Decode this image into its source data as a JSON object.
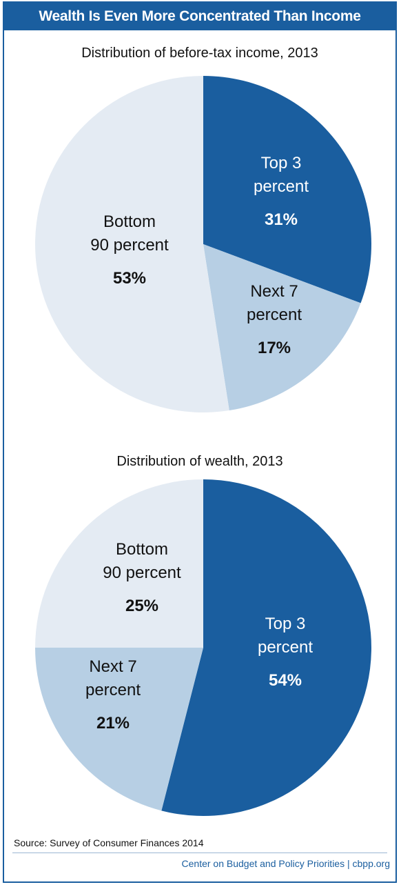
{
  "header": {
    "title": "Wealth Is Even More Concentrated Than Income"
  },
  "footer": {
    "source": "Source: Survey of Consumer Finances 2014",
    "credit": "Center on Budget and Policy Priorities | cbpp.org"
  },
  "colors": {
    "brand": "#1a5e9f",
    "top_3": "#1a5e9f",
    "next_7": "#b7cfe4",
    "bottom_90": "#e4ebf3"
  },
  "chart_data": [
    {
      "type": "pie",
      "title": "Distribution of before-tax income, 2013",
      "slices": [
        {
          "label_line1": "Top 3",
          "label_line2": "percent",
          "value": 31,
          "value_label": "31%"
        },
        {
          "label_line1": "Next 7",
          "label_line2": "percent",
          "value": 17,
          "value_label": "17%"
        },
        {
          "label_line1": "Bottom",
          "label_line2": "90 percent",
          "value": 53,
          "value_label": "53%"
        }
      ]
    },
    {
      "type": "pie",
      "title": "Distribution of wealth, 2013",
      "slices": [
        {
          "label_line1": "Top 3",
          "label_line2": "percent",
          "value": 54,
          "value_label": "54%"
        },
        {
          "label_line1": "Next 7",
          "label_line2": "percent",
          "value": 21,
          "value_label": "21%"
        },
        {
          "label_line1": "Bottom",
          "label_line2": "90 percent",
          "value": 25,
          "value_label": "25%"
        }
      ]
    }
  ]
}
